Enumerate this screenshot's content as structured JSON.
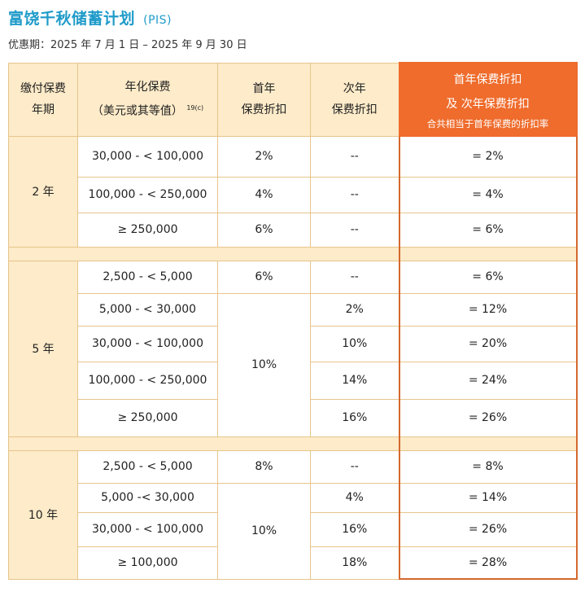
{
  "title": "富饶千秋储蓄计划",
  "title_suffix": "(PIS)",
  "promo_period": "优惠期：2025 年 7 月 1 日 – 2025 年 9 月 30 日",
  "header": {
    "col1": [
      "缴付保费",
      "年期"
    ],
    "col2": [
      "年化保费",
      "（美元或其等值）"
    ],
    "col2_sup": "19(c)",
    "col3": [
      "首年",
      "保费折扣"
    ],
    "col4": [
      "次年",
      "保费折扣"
    ],
    "col5": [
      "首年保费折扣",
      "及 次年保费折扣"
    ],
    "col5_note": "合共相当于首年保费的折扣率"
  },
  "groups": [
    {
      "period": "2 年",
      "rows": [
        {
          "band": "30,000 - < 100,000",
          "first": "2%",
          "second": "--",
          "total": "= 2%"
        },
        {
          "band": "100,000 - < 250,000",
          "first": "4%",
          "second": "--",
          "total": "= 4%"
        },
        {
          "band": "≥ 250,000",
          "first": "6%",
          "second": "--",
          "total": "= 6%"
        }
      ]
    },
    {
      "period": "5 年",
      "rows": [
        {
          "band": "2,500 - < 5,000",
          "first": "6%",
          "second": "--",
          "total": "= 6%"
        },
        {
          "band": "5,000 - < 30,000",
          "first": "10%",
          "second": "2%",
          "total": "= 12%"
        },
        {
          "band": "30,000 - < 100,000",
          "second": "10%",
          "total": "= 20%"
        },
        {
          "band": "100,000 - < 250,000",
          "second": "14%",
          "total": "= 24%"
        },
        {
          "band": "≥ 250,000",
          "second": "16%",
          "total": "= 26%"
        }
      ]
    },
    {
      "period": "10 年",
      "rows": [
        {
          "band": "2,500 - < 5,000",
          "first": "8%",
          "second": "--",
          "total": "= 8%"
        },
        {
          "band": "5,000 -< 30,000",
          "first": "10%",
          "second": "4%",
          "total": "= 14%"
        },
        {
          "band": "30,000 - < 100,000",
          "second": "16%",
          "total": "= 26%"
        },
        {
          "band": "≥ 100,000",
          "second": "18%",
          "total": "= 28%"
        }
      ]
    }
  ],
  "colors": {
    "accent": "#ef6c2c",
    "header_bg": "#fdebc9",
    "title": "#1f9bc9",
    "border": "#e6c58b"
  }
}
